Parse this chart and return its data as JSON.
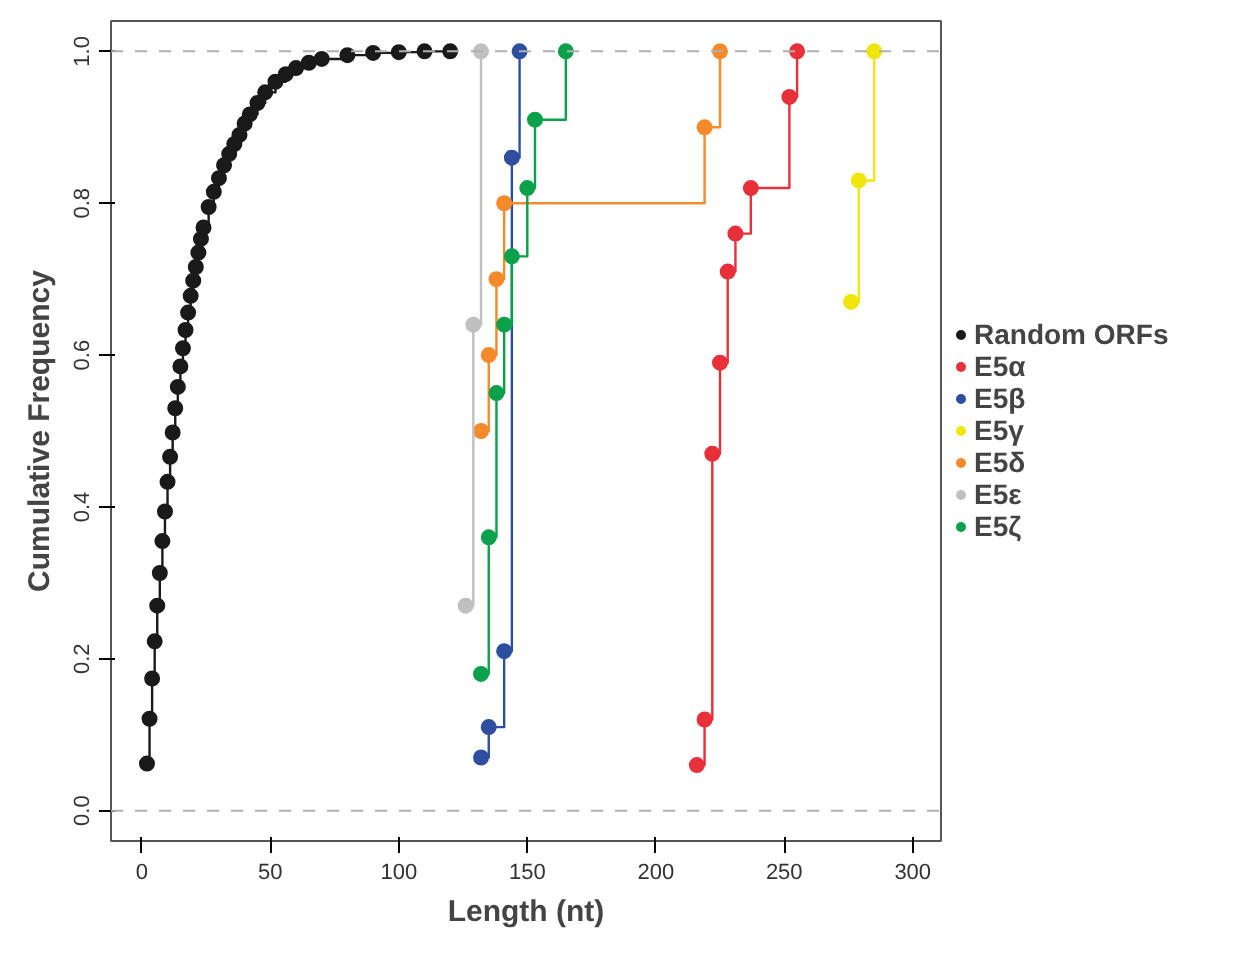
{
  "chart_data": {
    "type": "step",
    "xlabel": "Length (nt)",
    "ylabel": "Cumulative Frequency",
    "xlim": [
      -12,
      311
    ],
    "ylim": [
      -0.04,
      1.04
    ],
    "xticks": [
      0,
      50,
      100,
      150,
      200,
      250,
      300
    ],
    "yticks": [
      {
        "value": 0,
        "label": "0.0"
      },
      {
        "value": 0.2,
        "label": "0.2"
      },
      {
        "value": 0.4,
        "label": "0.4"
      },
      {
        "value": 0.6,
        "label": "0.6"
      },
      {
        "value": 0.8,
        "label": "0.8"
      },
      {
        "value": 1,
        "label": "1.0"
      }
    ],
    "grid": false,
    "legend": "right",
    "marker": "circle",
    "line_style": "solid",
    "ref_lines": [
      {
        "axis": "y",
        "value": 0,
        "color": "#b0b0b0",
        "line_style": "dashed"
      },
      {
        "axis": "y",
        "value": 1,
        "color": "#b0b0b0",
        "line_style": "dashed"
      }
    ],
    "series": [
      {
        "name": "Random ORFs",
        "color": "#1a1a1a",
        "x": [
          2,
          3,
          4,
          5,
          6,
          7,
          8,
          9,
          10,
          11,
          12,
          13,
          14,
          15,
          16,
          17,
          18,
          19,
          20,
          21,
          22,
          23,
          24,
          26,
          28,
          30,
          32,
          34,
          36,
          38,
          40,
          42,
          45,
          48,
          52,
          56,
          60,
          65,
          70,
          80,
          90,
          100,
          110,
          120
        ],
        "values": [
          0.062,
          0.121,
          0.174,
          0.223,
          0.27,
          0.313,
          0.355,
          0.394,
          0.433,
          0.466,
          0.498,
          0.53,
          0.558,
          0.585,
          0.609,
          0.633,
          0.656,
          0.678,
          0.698,
          0.716,
          0.735,
          0.753,
          0.768,
          0.795,
          0.815,
          0.833,
          0.85,
          0.865,
          0.878,
          0.89,
          0.905,
          0.917,
          0.932,
          0.946,
          0.96,
          0.97,
          0.978,
          0.985,
          0.99,
          0.995,
          0.998,
          0.999,
          1.0,
          1.0
        ]
      },
      {
        "name": "E5α",
        "color": "#e8303a",
        "x": [
          216,
          219,
          222,
          225,
          228,
          231,
          237,
          252,
          255
        ],
        "values": [
          0.06,
          0.12,
          0.47,
          0.59,
          0.71,
          0.76,
          0.82,
          0.94,
          1.0
        ]
      },
      {
        "name": "E5β",
        "color": "#2e4fa0",
        "x": [
          132,
          135,
          141,
          144,
          147
        ],
        "values": [
          0.07,
          0.11,
          0.21,
          0.86,
          1.0
        ]
      },
      {
        "name": "E5γ",
        "color": "#f0e50c",
        "x": [
          276,
          279,
          285
        ],
        "values": [
          0.67,
          0.83,
          1.0
        ]
      },
      {
        "name": "E5δ",
        "color": "#f58a2a",
        "x": [
          132,
          135,
          138,
          141,
          219,
          225
        ],
        "values": [
          0.5,
          0.6,
          0.7,
          0.8,
          0.9,
          1.0
        ]
      },
      {
        "name": "E5ε",
        "color": "#c0c0c0",
        "x": [
          126,
          129,
          132
        ],
        "values": [
          0.27,
          0.64,
          1.0
        ]
      },
      {
        "name": "E5ζ",
        "color": "#0aa14a",
        "x": [
          132,
          135,
          138,
          141,
          144,
          150,
          153,
          165
        ],
        "values": [
          0.18,
          0.36,
          0.55,
          0.64,
          0.73,
          0.82,
          0.91,
          1.0
        ]
      }
    ]
  }
}
